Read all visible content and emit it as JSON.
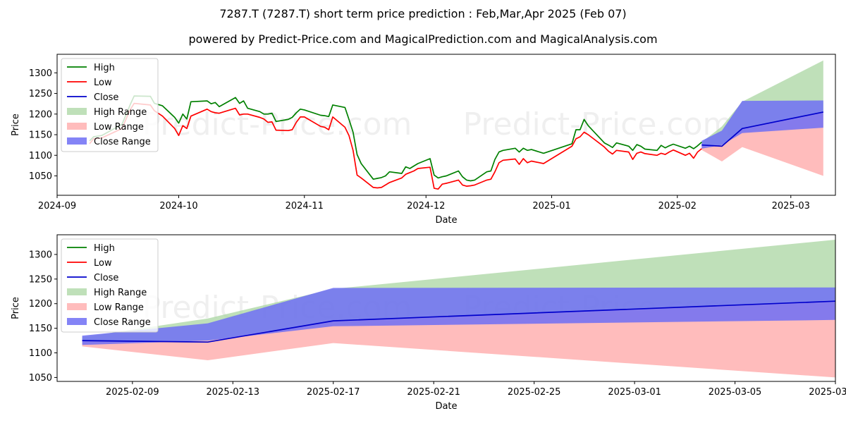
{
  "title": "7287.T (7287.T) short term price prediction : Feb,Mar,Apr 2025 (Feb 07)",
  "subtitle": "powered by Predict-Price.com and MagicalPrediction.com and MagicalAnalysis.com",
  "watermark": "Predict-Price.com",
  "colors": {
    "high": "#008000",
    "low": "#ff0000",
    "close": "#0000cc",
    "high_range": "#a9d6a2",
    "low_range": "#ffb0b0",
    "close_range": "#6f6ff5"
  },
  "chart_data": [
    {
      "type": "line",
      "xlabel": "Date",
      "ylabel": "Price",
      "xlim": [
        "2024-09-01",
        "2025-03-12"
      ],
      "ylim": [
        1003,
        1345
      ],
      "grid": false,
      "legend_position": "top-left",
      "legend": [
        "High",
        "Low",
        "Close",
        "High Range",
        "Low Range",
        "Close Range"
      ],
      "x_ticks": [
        "2024-09-01",
        "2024-10-01",
        "2024-11-01",
        "2024-12-01",
        "2025-01-01",
        "2025-02-01",
        "2025-03-01"
      ],
      "x_tick_labels": [
        "2024-09",
        "2024-10",
        "2024-11",
        "2024-12",
        "2025-01",
        "2025-02",
        "2025-03"
      ],
      "y_ticks": [
        1050,
        1100,
        1150,
        1200,
        1250,
        1300
      ],
      "series": [
        {
          "name": "High",
          "x": [
            "2024-09-09",
            "2024-09-10",
            "2024-09-12",
            "2024-09-17",
            "2024-09-19",
            "2024-09-20",
            "2024-09-24",
            "2024-09-25",
            "2024-09-27",
            "2024-09-30",
            "2024-10-01",
            "2024-10-02",
            "2024-10-03",
            "2024-10-04",
            "2024-10-08",
            "2024-10-09",
            "2024-10-10",
            "2024-10-11",
            "2024-10-15",
            "2024-10-16",
            "2024-10-17",
            "2024-10-18",
            "2024-10-21",
            "2024-10-22",
            "2024-10-23",
            "2024-10-24",
            "2024-10-25",
            "2024-10-28",
            "2024-10-29",
            "2024-10-30",
            "2024-10-31",
            "2024-11-01",
            "2024-11-05",
            "2024-11-06",
            "2024-11-07",
            "2024-11-08",
            "2024-11-11",
            "2024-11-12",
            "2024-11-13",
            "2024-11-14",
            "2024-11-15",
            "2024-11-18",
            "2024-11-19",
            "2024-11-20",
            "2024-11-21",
            "2024-11-22",
            "2024-11-25",
            "2024-11-26",
            "2024-11-27",
            "2024-11-28",
            "2024-11-29",
            "2024-12-02",
            "2024-12-03",
            "2024-12-04",
            "2024-12-05",
            "2024-12-06",
            "2024-12-09",
            "2024-12-10",
            "2024-12-11",
            "2024-12-12",
            "2024-12-13",
            "2024-12-16",
            "2024-12-17",
            "2024-12-18",
            "2024-12-19",
            "2024-12-20",
            "2024-12-23",
            "2024-12-24",
            "2024-12-25",
            "2024-12-26",
            "2024-12-27",
            "2024-12-30",
            "2025-01-06",
            "2025-01-07",
            "2025-01-08",
            "2025-01-09",
            "2025-01-10",
            "2025-01-14",
            "2025-01-15",
            "2025-01-16",
            "2025-01-17",
            "2025-01-20",
            "2025-01-21",
            "2025-01-22",
            "2025-01-23",
            "2025-01-24",
            "2025-01-27",
            "2025-01-28",
            "2025-01-29",
            "2025-01-30",
            "2025-01-31",
            "2025-02-03",
            "2025-02-04",
            "2025-02-05",
            "2025-02-06",
            "2025-02-07"
          ],
          "y": [
            1135,
            1145,
            1148,
            1175,
            1222,
            1244,
            1243,
            1226,
            1220,
            1192,
            1178,
            1200,
            1188,
            1230,
            1232,
            1225,
            1228,
            1218,
            1240,
            1226,
            1232,
            1214,
            1206,
            1200,
            1200,
            1202,
            1182,
            1187,
            1192,
            1203,
            1212,
            1210,
            1197,
            1196,
            1194,
            1222,
            1216,
            1187,
            1156,
            1102,
            1080,
            1042,
            1044,
            1046,
            1050,
            1060,
            1056,
            1072,
            1068,
            1074,
            1080,
            1092,
            1052,
            1045,
            1048,
            1050,
            1062,
            1048,
            1040,
            1038,
            1040,
            1060,
            1062,
            1090,
            1108,
            1112,
            1117,
            1108,
            1117,
            1112,
            1114,
            1105,
            1128,
            1162,
            1162,
            1187,
            1172,
            1130,
            1125,
            1119,
            1130,
            1122,
            1112,
            1126,
            1122,
            1115,
            1112,
            1124,
            1118,
            1123,
            1127,
            1117,
            1122,
            1116,
            1123,
            1132
          ]
        },
        {
          "name": "Low",
          "x": [
            "2024-09-09",
            "2024-09-10",
            "2024-09-12",
            "2024-09-17",
            "2024-09-19",
            "2024-09-20",
            "2024-09-24",
            "2024-09-25",
            "2024-09-27",
            "2024-09-30",
            "2024-10-01",
            "2024-10-02",
            "2024-10-03",
            "2024-10-04",
            "2024-10-08",
            "2024-10-09",
            "2024-10-10",
            "2024-10-11",
            "2024-10-15",
            "2024-10-16",
            "2024-10-17",
            "2024-10-18",
            "2024-10-21",
            "2024-10-22",
            "2024-10-23",
            "2024-10-24",
            "2024-10-25",
            "2024-10-28",
            "2024-10-29",
            "2024-10-30",
            "2024-10-31",
            "2024-11-01",
            "2024-11-05",
            "2024-11-06",
            "2024-11-07",
            "2024-11-08",
            "2024-11-11",
            "2024-11-12",
            "2024-11-13",
            "2024-11-14",
            "2024-11-15",
            "2024-11-18",
            "2024-11-19",
            "2024-11-20",
            "2024-11-21",
            "2024-11-22",
            "2024-11-25",
            "2024-11-26",
            "2024-11-27",
            "2024-11-28",
            "2024-11-29",
            "2024-12-02",
            "2024-12-03",
            "2024-12-04",
            "2024-12-05",
            "2024-12-06",
            "2024-12-09",
            "2024-12-10",
            "2024-12-11",
            "2024-12-12",
            "2024-12-13",
            "2024-12-16",
            "2024-12-17",
            "2024-12-18",
            "2024-12-19",
            "2024-12-20",
            "2024-12-23",
            "2024-12-24",
            "2024-12-25",
            "2024-12-26",
            "2024-12-27",
            "2024-12-30",
            "2025-01-06",
            "2025-01-07",
            "2025-01-08",
            "2025-01-09",
            "2025-01-10",
            "2025-01-14",
            "2025-01-15",
            "2025-01-16",
            "2025-01-17",
            "2025-01-20",
            "2025-01-21",
            "2025-01-22",
            "2025-01-23",
            "2025-01-24",
            "2025-01-27",
            "2025-01-28",
            "2025-01-29",
            "2025-01-30",
            "2025-01-31",
            "2025-02-03",
            "2025-02-04",
            "2025-02-05",
            "2025-02-06",
            "2025-02-07"
          ],
          "y": [
            1128,
            1140,
            1142,
            1165,
            1210,
            1226,
            1222,
            1208,
            1195,
            1165,
            1148,
            1172,
            1165,
            1195,
            1212,
            1206,
            1203,
            1202,
            1214,
            1198,
            1200,
            1200,
            1192,
            1188,
            1180,
            1181,
            1161,
            1160,
            1162,
            1180,
            1193,
            1193,
            1170,
            1168,
            1162,
            1193,
            1168,
            1148,
            1112,
            1052,
            1045,
            1022,
            1021,
            1022,
            1028,
            1034,
            1045,
            1054,
            1058,
            1062,
            1068,
            1071,
            1020,
            1018,
            1030,
            1032,
            1040,
            1028,
            1025,
            1026,
            1028,
            1040,
            1042,
            1060,
            1082,
            1088,
            1091,
            1078,
            1092,
            1082,
            1086,
            1080,
            1122,
            1140,
            1145,
            1156,
            1150,
            1120,
            1110,
            1103,
            1112,
            1108,
            1090,
            1105,
            1108,
            1104,
            1100,
            1105,
            1102,
            1108,
            1113,
            1100,
            1105,
            1093,
            1108,
            1116
          ]
        },
        {
          "name": "Close",
          "x": [
            "2025-02-07",
            "2025-02-12",
            "2025-02-17",
            "2025-03-09"
          ],
          "y": [
            1125,
            1122,
            1165,
            1205
          ]
        }
      ],
      "ranges": [
        {
          "name": "High Range",
          "x": [
            "2025-02-07",
            "2025-02-12",
            "2025-02-17",
            "2025-03-09"
          ],
          "lower": [
            1125,
            1125,
            1165,
            1205
          ],
          "upper": [
            1132,
            1170,
            1230,
            1330
          ]
        },
        {
          "name": "Low Range",
          "x": [
            "2025-02-07",
            "2025-02-12",
            "2025-02-17",
            "2025-03-09"
          ],
          "lower": [
            1113,
            1085,
            1120,
            1050
          ],
          "upper": [
            1125,
            1125,
            1165,
            1205
          ]
        },
        {
          "name": "Close Range",
          "x": [
            "2025-02-07",
            "2025-02-12",
            "2025-02-17",
            "2025-03-09"
          ],
          "lower": [
            1116,
            1125,
            1154,
            1167
          ],
          "upper": [
            1135,
            1160,
            1232,
            1233
          ]
        }
      ]
    },
    {
      "type": "line",
      "xlabel": "Date",
      "ylabel": "Price",
      "xlim": [
        "2025-02-06",
        "2025-03-09"
      ],
      "ylim": [
        1042,
        1340
      ],
      "grid": false,
      "legend_position": "top-left",
      "legend": [
        "High",
        "Low",
        "Close",
        "High Range",
        "Low Range",
        "Close Range"
      ],
      "x_ticks": [
        "2025-02-09",
        "2025-02-13",
        "2025-02-17",
        "2025-02-21",
        "2025-02-25",
        "2025-03-01",
        "2025-03-05",
        "2025-03-09"
      ],
      "x_tick_labels": [
        "2025-02-09",
        "2025-02-13",
        "2025-02-17",
        "2025-02-21",
        "2025-02-25",
        "2025-03-01",
        "2025-03-05",
        "2025-03-09"
      ],
      "y_ticks": [
        1050,
        1100,
        1150,
        1200,
        1250,
        1300
      ],
      "series": [
        {
          "name": "Close",
          "x": [
            "2025-02-07",
            "2025-02-12",
            "2025-02-17",
            "2025-03-09"
          ],
          "y": [
            1125,
            1122,
            1165,
            1205
          ]
        }
      ],
      "ranges": [
        {
          "name": "High Range",
          "x": [
            "2025-02-07",
            "2025-02-12",
            "2025-02-17",
            "2025-03-09"
          ],
          "lower": [
            1125,
            1125,
            1165,
            1205
          ],
          "upper": [
            1132,
            1170,
            1230,
            1330
          ]
        },
        {
          "name": "Low Range",
          "x": [
            "2025-02-07",
            "2025-02-12",
            "2025-02-17",
            "2025-03-09"
          ],
          "lower": [
            1113,
            1085,
            1120,
            1050
          ],
          "upper": [
            1125,
            1125,
            1165,
            1205
          ]
        },
        {
          "name": "Close Range",
          "x": [
            "2025-02-07",
            "2025-02-12",
            "2025-02-17",
            "2025-03-09"
          ],
          "lower": [
            1116,
            1125,
            1154,
            1167
          ],
          "upper": [
            1135,
            1160,
            1232,
            1233
          ]
        }
      ]
    }
  ]
}
